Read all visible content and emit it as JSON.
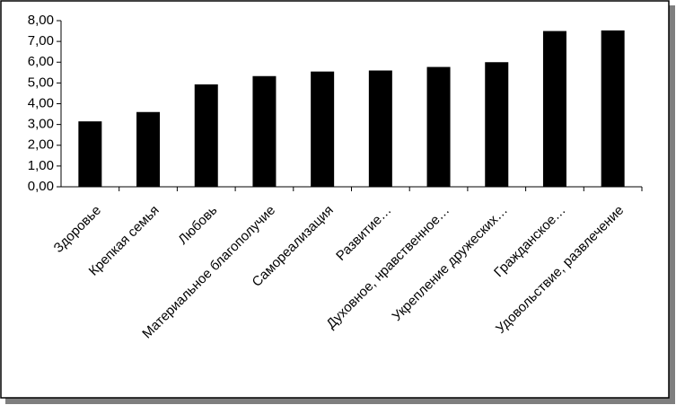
{
  "chart_data": {
    "type": "bar",
    "categories": [
      "Здоровье",
      "Крепкая семья",
      "Любовь",
      "Материальное благополучие",
      "Самореализация",
      "Развитие…",
      "Духовное, нравственное…",
      "Укрепление дружеских…",
      "Гражданское…",
      "Удовольствие, развлечение"
    ],
    "values": [
      3.15,
      3.6,
      4.93,
      5.33,
      5.55,
      5.6,
      5.77,
      6.0,
      7.5,
      7.53
    ],
    "color": "#000000",
    "ylim": [
      0,
      8
    ],
    "yticks": [
      {
        "value": 0,
        "label": "0,00"
      },
      {
        "value": 1,
        "label": "1,00"
      },
      {
        "value": 2,
        "label": "2,00"
      },
      {
        "value": 3,
        "label": "3,00"
      },
      {
        "value": 4,
        "label": "4,00"
      },
      {
        "value": 5,
        "label": "5,00"
      },
      {
        "value": 6,
        "label": "6,00"
      },
      {
        "value": 7,
        "label": "7,00"
      },
      {
        "value": 8,
        "label": "8,00"
      }
    ],
    "grid": false
  }
}
